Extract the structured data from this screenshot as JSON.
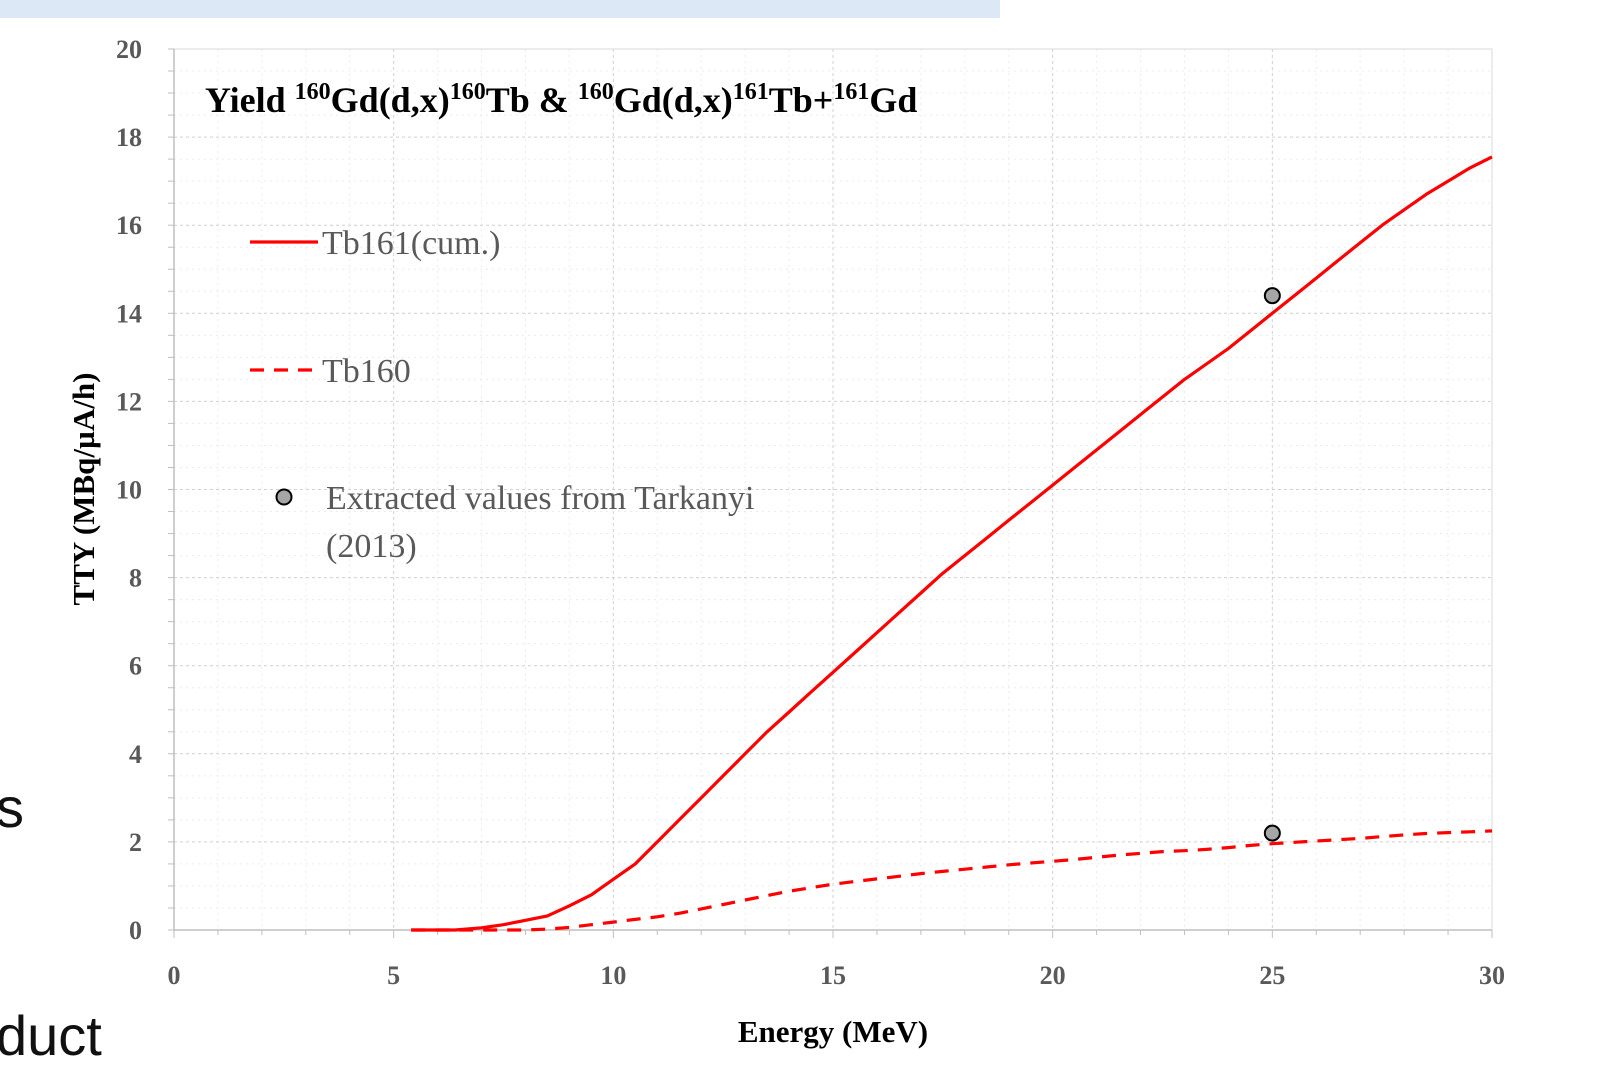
{
  "background": {
    "fragment_1": "s",
    "fragment_2": "duct"
  },
  "chart_data": {
    "type": "line",
    "title": {
      "parts": [
        {
          "text": "Yield ",
          "sup": false
        },
        {
          "text": "160",
          "sup": true
        },
        {
          "text": "Gd(d,x)",
          "sup": false
        },
        {
          "text": "160",
          "sup": true
        },
        {
          "text": "Tb & ",
          "sup": false
        },
        {
          "text": "160",
          "sup": true
        },
        {
          "text": "Gd(d,x)",
          "sup": false
        },
        {
          "text": "161",
          "sup": true
        },
        {
          "text": "Tb+",
          "sup": false
        },
        {
          "text": "161",
          "sup": true
        },
        {
          "text": "Gd",
          "sup": false
        }
      ]
    },
    "xlabel": "Energy (MeV)",
    "ylabel": "TTY (MBq/µA/h)",
    "xlim": [
      0,
      30
    ],
    "ylim": [
      0,
      20
    ],
    "xticks": [
      0,
      5,
      10,
      15,
      20,
      25,
      30
    ],
    "yticks": [
      0,
      2,
      4,
      6,
      8,
      10,
      12,
      14,
      16,
      18,
      20
    ],
    "grid": true,
    "legend_position": "top-left",
    "series": [
      {
        "name": "Tb161(cum.)",
        "style": "solid",
        "color": "#ff0000",
        "x": [
          5.4,
          6.4,
          7.0,
          7.5,
          8.0,
          8.5,
          9.0,
          9.5,
          10.0,
          10.5,
          11.0,
          11.5,
          12.0,
          12.5,
          13.0,
          13.5,
          14.0,
          14.5,
          15.0,
          15.5,
          16.0,
          16.5,
          17.0,
          17.5,
          18.0,
          18.5,
          19.0,
          19.5,
          20.0,
          20.5,
          21.0,
          21.5,
          22.0,
          22.5,
          23.0,
          23.5,
          24.0,
          24.5,
          25.0,
          25.5,
          26.0,
          26.5,
          27.0,
          27.5,
          28.0,
          28.5,
          29.0,
          29.5,
          30.0
        ],
        "y": [
          0.0,
          0.0,
          0.05,
          0.12,
          0.22,
          0.32,
          0.55,
          0.8,
          1.15,
          1.5,
          2.0,
          2.5,
          3.0,
          3.5,
          4.0,
          4.5,
          4.95,
          5.4,
          5.85,
          6.3,
          6.75,
          7.2,
          7.65,
          8.1,
          8.5,
          8.9,
          9.3,
          9.7,
          10.1,
          10.5,
          10.9,
          11.3,
          11.7,
          12.1,
          12.5,
          12.85,
          13.2,
          13.6,
          14.0,
          14.4,
          14.8,
          15.2,
          15.6,
          16.0,
          16.35,
          16.7,
          17.0,
          17.3,
          17.55
        ]
      },
      {
        "name": "Tb160",
        "style": "dashed",
        "color": "#ff0000",
        "x": [
          5.4,
          6.4,
          7.0,
          7.5,
          8.0,
          8.5,
          9.0,
          9.5,
          10.0,
          10.5,
          11.0,
          11.5,
          12.0,
          12.5,
          13.0,
          13.5,
          14.0,
          14.5,
          15.0,
          15.5,
          16.0,
          16.5,
          17.0,
          17.5,
          18.0,
          18.5,
          19.0,
          19.5,
          20.0,
          20.5,
          21.0,
          21.5,
          22.0,
          22.5,
          23.0,
          23.5,
          24.0,
          24.5,
          25.0,
          25.5,
          26.0,
          26.5,
          27.0,
          27.5,
          28.0,
          28.5,
          29.0,
          29.5,
          30.0
        ],
        "y": [
          0.0,
          0.0,
          0.0,
          0.0,
          0.0,
          0.02,
          0.06,
          0.12,
          0.18,
          0.24,
          0.3,
          0.38,
          0.48,
          0.58,
          0.68,
          0.78,
          0.88,
          0.96,
          1.04,
          1.1,
          1.16,
          1.22,
          1.28,
          1.33,
          1.38,
          1.43,
          1.48,
          1.52,
          1.56,
          1.6,
          1.65,
          1.7,
          1.74,
          1.78,
          1.8,
          1.83,
          1.87,
          1.92,
          1.96,
          1.99,
          2.02,
          2.05,
          2.08,
          2.12,
          2.16,
          2.19,
          2.21,
          2.23,
          2.25
        ]
      },
      {
        "name": "Extracted values from Tarkanyi (2013)",
        "name_lines": [
          "Extracted values from Tarkanyi",
          "(2013)"
        ],
        "style": "markers",
        "color": "#a6a6a6",
        "x": [
          25,
          25
        ],
        "y": [
          14.4,
          2.2
        ]
      }
    ]
  }
}
